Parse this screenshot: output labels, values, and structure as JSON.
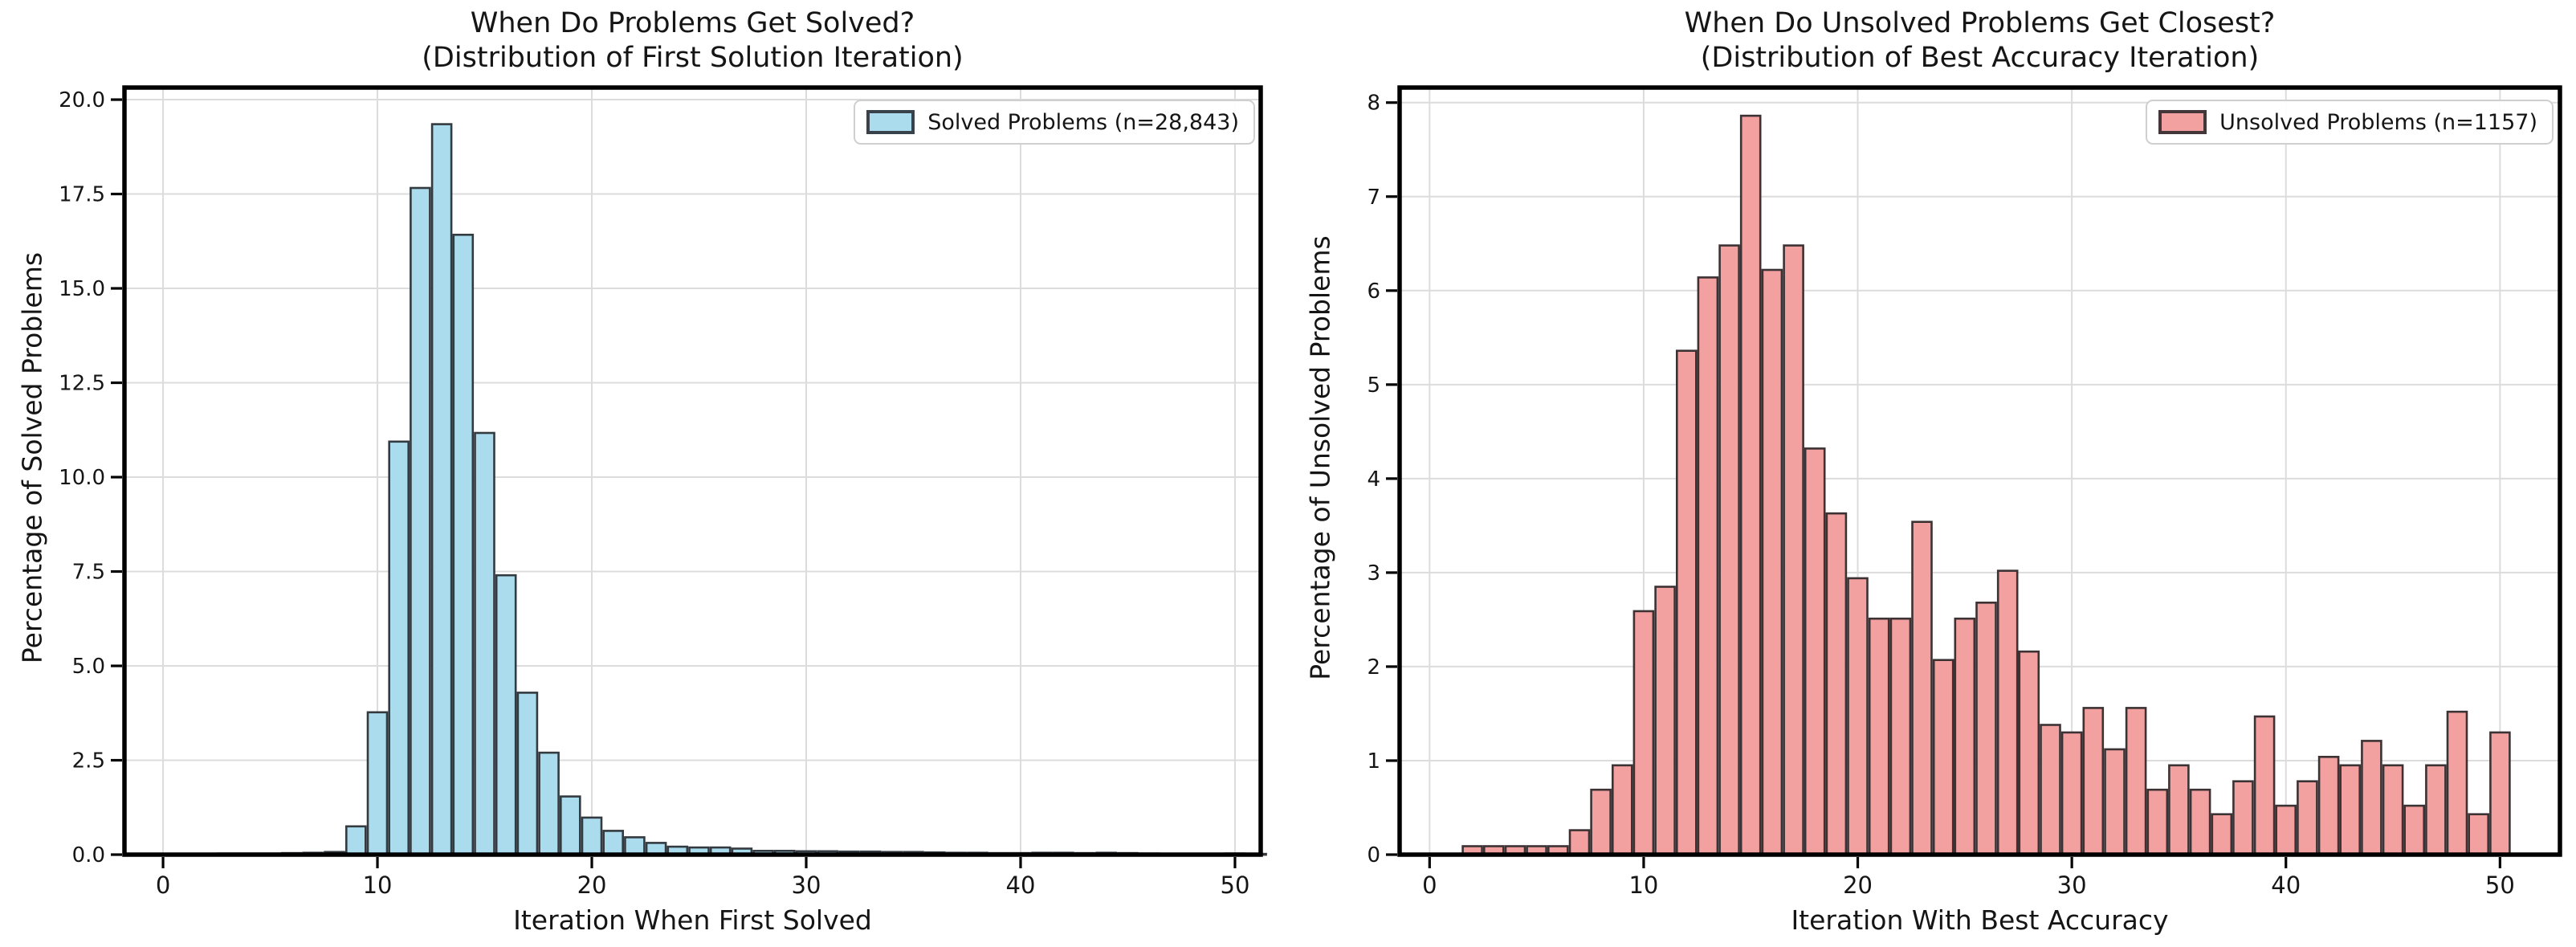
{
  "page": {
    "background": "#ffffff",
    "grid_color": "#dcdcdc",
    "spine_color": "#000000",
    "text_color": "#151515"
  },
  "chart_data": [
    {
      "type": "bar",
      "title": "When Do Problems Get Solved?",
      "subtitle": "(Distribution of First Solution Iteration)",
      "xlabel": "Iteration When First Solved",
      "ylabel": "Percentage of Solved Problems",
      "legend": {
        "label": "Solved Problems (n=28,843)",
        "fill": "#aadcee",
        "edge": "#39424a",
        "position": "upper right"
      },
      "bar_fill": "#aadcee",
      "bar_edge": "#333a40",
      "grid": true,
      "bar_width": 0.9,
      "xlim": [
        -1.8,
        51.2
      ],
      "ylim": [
        0,
        20.32
      ],
      "x_ticks": [
        0,
        10,
        20,
        30,
        40,
        50
      ],
      "y_ticks": [
        0.0,
        2.5,
        5.0,
        7.5,
        10.0,
        12.5,
        15.0,
        17.5,
        20.0
      ],
      "y_tick_labels": [
        "0.0",
        "2.5",
        "5.0",
        "7.5",
        "10.0",
        "12.5",
        "15.0",
        "17.5",
        "20.0"
      ],
      "x_tick_labels": [
        "0",
        "10",
        "20",
        "30",
        "40",
        "50"
      ],
      "x": [
        0,
        1,
        2,
        3,
        4,
        5,
        6,
        7,
        8,
        9,
        10,
        11,
        12,
        13,
        14,
        15,
        16,
        17,
        18,
        19,
        20,
        21,
        22,
        23,
        24,
        25,
        26,
        27,
        28,
        29,
        30,
        31,
        32,
        33,
        34,
        35,
        36,
        37,
        38,
        39,
        40,
        41,
        42,
        43,
        44,
        45,
        46,
        47,
        48,
        49,
        50,
        51
      ],
      "values": [
        0,
        0.02,
        0.02,
        0.03,
        0.03,
        0.03,
        0.04,
        0.05,
        0.07,
        0.75,
        3.77,
        10.94,
        17.66,
        19.35,
        16.42,
        11.17,
        7.4,
        4.29,
        2.7,
        1.54,
        0.98,
        0.63,
        0.46,
        0.31,
        0.21,
        0.19,
        0.19,
        0.16,
        0.1,
        0.1,
        0.09,
        0.09,
        0.08,
        0.08,
        0.07,
        0.07,
        0.06,
        0.05,
        0.05,
        0.04,
        0.04,
        0.05,
        0.05,
        0.04,
        0.05,
        0.04,
        0.03,
        0.02,
        0.02,
        0.02,
        0.03,
        0.02
      ]
    },
    {
      "type": "bar",
      "title": "When Do Unsolved Problems Get Closest?",
      "subtitle": "(Distribution of Best Accuracy Iteration)",
      "xlabel": "Iteration With Best Accuracy",
      "ylabel": "Percentage of Unsolved Problems",
      "legend": {
        "label": "Unsolved Problems (n=1157)",
        "fill": "#f3a0a0",
        "edge": "#433638",
        "position": "upper right"
      },
      "bar_fill": "#f3a0a0",
      "bar_edge": "#3c3234",
      "grid": true,
      "bar_width": 0.9,
      "xlim": [
        -1.4,
        52.8
      ],
      "ylim": [
        0,
        8.16
      ],
      "x_ticks": [
        0,
        10,
        20,
        30,
        40,
        50
      ],
      "y_ticks": [
        0,
        1,
        2,
        3,
        4,
        5,
        6,
        7,
        8
      ],
      "y_tick_labels": [
        "0",
        "1",
        "2",
        "3",
        "4",
        "5",
        "6",
        "7",
        "8"
      ],
      "x_tick_labels": [
        "0",
        "10",
        "20",
        "30",
        "40",
        "50"
      ],
      "x": [
        0,
        1,
        2,
        3,
        4,
        5,
        6,
        7,
        8,
        9,
        10,
        11,
        12,
        13,
        14,
        15,
        16,
        17,
        18,
        19,
        20,
        21,
        22,
        23,
        24,
        25,
        26,
        27,
        28,
        29,
        30,
        31,
        32,
        33,
        34,
        35,
        36,
        37,
        38,
        39,
        40,
        41,
        42,
        43,
        44,
        45,
        46,
        47,
        48,
        49,
        50
      ],
      "values": [
        0,
        0,
        0.09,
        0.09,
        0.09,
        0.09,
        0.09,
        0.26,
        0.69,
        0.95,
        2.59,
        2.85,
        5.36,
        6.14,
        6.48,
        7.86,
        6.22,
        6.48,
        4.32,
        3.63,
        2.94,
        2.51,
        2.51,
        3.54,
        2.07,
        2.51,
        2.68,
        3.02,
        2.16,
        1.38,
        1.3,
        1.56,
        1.12,
        1.56,
        0.69,
        0.95,
        0.69,
        0.43,
        0.78,
        1.47,
        0.52,
        0.78,
        1.04,
        0.95,
        1.21,
        0.95,
        0.52,
        0.95,
        1.52,
        0.43,
        1.3
      ]
    }
  ]
}
